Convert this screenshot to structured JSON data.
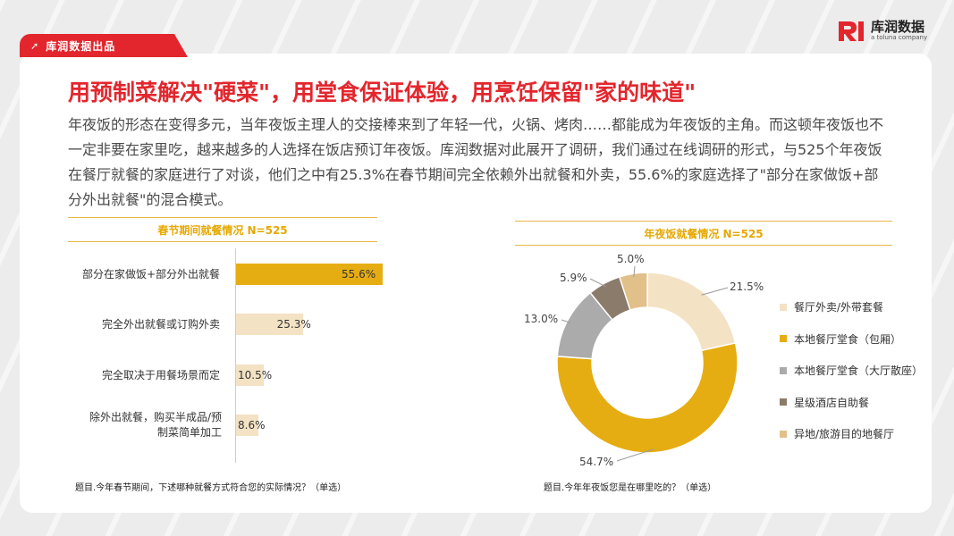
{
  "header": {
    "tag_text": "库润数据出品",
    "brand_name": "库润数据",
    "brand_sub": "a toluna company"
  },
  "title": "用预制菜解决\"硬菜\"，用堂食保证体验，用烹饪保留\"家的味道\"",
  "intro": "年夜饭的形态在变得多元，当年夜饭主理人的交接棒来到了年轻一代，火锅、烤肉……都能成为年夜饭的主角。而这顿年夜饭也不一定非要在家里吃，越来越多的人选择在饭店预订年夜饭。库润数据对此展开了调研，我们通过在线调研的形式，与525个年夜饭在餐厅就餐的家庭进行了对谈，他们之中有25.3%在春节期间完全依赖外出就餐和外卖，55.6%的家庭选择了\"部分在家做饭+部分外出就餐\"的混合模式。",
  "colors": {
    "accent_red": "#e3262d",
    "gold": "#e6ad12",
    "beige": "#f3e2c4",
    "gray": "#ababab",
    "brown": "#8b7b6b",
    "tan": "#e2c08a"
  },
  "left_chart": {
    "heading": "春节期间就餐情况  N=525",
    "question": "题目.今年春节期间，下述哪种就餐方式符合您的实际情况？（单选）"
  },
  "right_chart": {
    "heading": "年夜饭就餐情况    N=525",
    "question": "题目.今年年夜饭您是在哪里吃的？（单选）"
  },
  "chart_data": [
    {
      "type": "bar",
      "orientation": "horizontal",
      "title": "春节期间就餐情况  N=525",
      "categories": [
        "部分在家做饭+部分外出就餐",
        "完全外出就餐或订购外卖",
        "完全取决于用餐场景而定",
        "除外出就餐，购买半成品/预制菜简单加工"
      ],
      "values": [
        55.6,
        25.3,
        10.5,
        8.6
      ],
      "value_labels": [
        "55.6%",
        "25.3%",
        "10.5%",
        "8.6%"
      ],
      "xlim": [
        0,
        55.6
      ],
      "colors": [
        "#e6ad12",
        "#f3e2c4",
        "#f3e2c4",
        "#f3e2c4"
      ]
    },
    {
      "type": "pie",
      "donut": true,
      "title": "年夜饭就餐情况    N=525",
      "labels": [
        "餐厅外卖/外带套餐",
        "本地餐厅堂食（包厢）",
        "本地餐厅堂食（大厅散座）",
        "星级酒店自助餐",
        "异地/旅游目的地餐厅"
      ],
      "values": [
        21.5,
        54.7,
        13.0,
        5.9,
        5.0
      ],
      "value_labels": [
        "21.5%",
        "54.7%",
        "13.0%",
        "5.9%",
        "5.0%"
      ],
      "colors": [
        "#f3e2c4",
        "#e6ad12",
        "#ababab",
        "#8b7b6b",
        "#e2c08a"
      ],
      "legend_position": "right"
    }
  ]
}
